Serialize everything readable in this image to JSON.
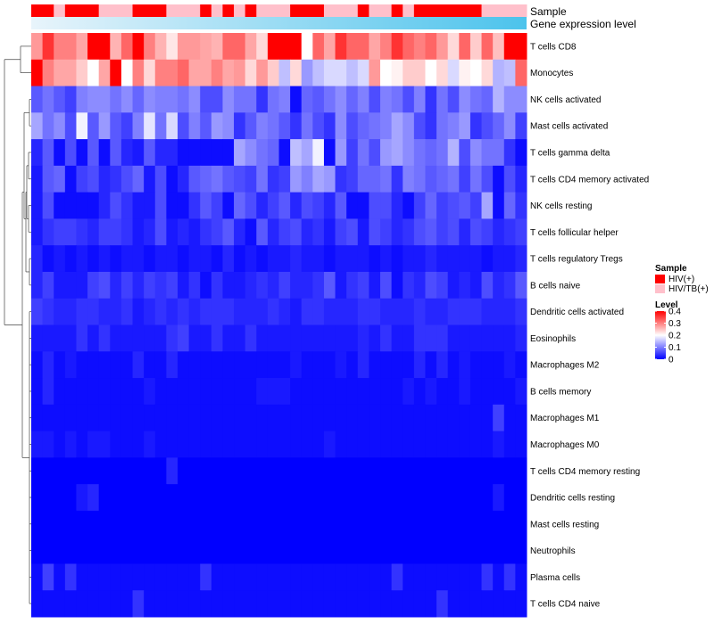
{
  "chart_data": {
    "type": "heatmap",
    "rows": [
      "T cells CD8",
      "Monocytes",
      "NK cells activated",
      "Mast cells activated",
      "T cells gamma delta",
      "T cells CD4 memory activated",
      "NK cells resting",
      "T cells follicular helper",
      "T cells regulatory  Tregs",
      "B cells naive",
      "Dendritic cells activated",
      "Eosinophils",
      "Macrophages M2",
      "B cells memory",
      "Macrophages M1",
      "Macrophages M0",
      "T cells CD4 memory resting",
      "Dendritic cells resting",
      "Mast cells resting",
      "Neutrophils",
      "Plasma cells",
      "T cells CD4 naive"
    ],
    "n_columns": 44,
    "annotation_labels": {
      "sample": "Sample",
      "gene": "Gene expression level"
    },
    "sample_annotation": [
      "HIV(+)",
      "HIV(+)",
      "HIV/TB(+)",
      "HIV(+)",
      "HIV(+)",
      "HIV(+)",
      "HIV/TB(+)",
      "HIV/TB(+)",
      "HIV/TB(+)",
      "HIV(+)",
      "HIV(+)",
      "HIV(+)",
      "HIV/TB(+)",
      "HIV/TB(+)",
      "HIV/TB(+)",
      "HIV(+)",
      "HIV/TB(+)",
      "HIV(+)",
      "HIV/TB(+)",
      "HIV(+)",
      "HIV/TB(+)",
      "HIV/TB(+)",
      "HIV/TB(+)",
      "HIV(+)",
      "HIV(+)",
      "HIV(+)",
      "HIV/TB(+)",
      "HIV/TB(+)",
      "HIV/TB(+)",
      "HIV(+)",
      "HIV/TB(+)",
      "HIV/TB(+)",
      "HIV(+)",
      "HIV/TB(+)",
      "HIV(+)",
      "HIV(+)",
      "HIV(+)",
      "HIV(+)",
      "HIV(+)",
      "HIV(+)",
      "HIV/TB(+)",
      "HIV/TB(+)",
      "HIV/TB(+)",
      "HIV/TB(+)"
    ],
    "values": [
      [
        0.28,
        0.36,
        0.3,
        0.3,
        0.27,
        0.4,
        0.4,
        0.26,
        0.32,
        0.4,
        0.3,
        0.26,
        0.22,
        0.28,
        0.28,
        0.27,
        0.26,
        0.32,
        0.32,
        0.27,
        0.23,
        0.4,
        0.42,
        0.42,
        0.2,
        0.32,
        0.27,
        0.36,
        0.32,
        0.32,
        0.27,
        0.3,
        0.36,
        0.32,
        0.3,
        0.32,
        0.28,
        0.23,
        0.32,
        0.24,
        0.32,
        0.25,
        0.4,
        0.4
      ],
      [
        0.42,
        0.3,
        0.27,
        0.27,
        0.24,
        0.2,
        0.27,
        0.4,
        0.2,
        0.3,
        0.23,
        0.3,
        0.3,
        0.32,
        0.27,
        0.27,
        0.3,
        0.27,
        0.28,
        0.23,
        0.28,
        0.24,
        0.15,
        0.23,
        0.12,
        0.15,
        0.17,
        0.17,
        0.15,
        0.17,
        0.28,
        0.2,
        0.21,
        0.24,
        0.24,
        0.2,
        0.23,
        0.17,
        0.21,
        0.2,
        0.23,
        0.14,
        0.15,
        0.32
      ],
      [
        0.07,
        0.09,
        0.07,
        0.05,
        0.1,
        0.11,
        0.11,
        0.09,
        0.11,
        0.08,
        0.11,
        0.1,
        0.1,
        0.09,
        0.11,
        0.06,
        0.06,
        0.11,
        0.09,
        0.09,
        0.04,
        0.09,
        0.1,
        0.01,
        0.08,
        0.07,
        0.09,
        0.11,
        0.08,
        0.1,
        0.06,
        0.1,
        0.09,
        0.06,
        0.1,
        0.04,
        0.09,
        0.06,
        0.11,
        0.09,
        0.08,
        0.14,
        0.11,
        0.11
      ],
      [
        0.13,
        0.09,
        0.11,
        0.06,
        0.19,
        0.07,
        0.12,
        0.07,
        0.05,
        0.1,
        0.18,
        0.09,
        0.17,
        0.06,
        0.1,
        0.07,
        0.12,
        0.11,
        0.04,
        0.07,
        0.1,
        0.09,
        0.07,
        0.04,
        0.09,
        0.06,
        0.04,
        0.11,
        0.06,
        0.08,
        0.09,
        0.1,
        0.13,
        0.11,
        0.06,
        0.04,
        0.09,
        0.1,
        0.12,
        0.04,
        0.06,
        0.08,
        0.11,
        0.05
      ],
      [
        0.03,
        0.07,
        0.01,
        0.06,
        0.01,
        0.07,
        0.01,
        0.07,
        0.03,
        0.02,
        0.07,
        0.03,
        0.03,
        0.01,
        0.01,
        0.01,
        0.01,
        0.01,
        0.13,
        0.11,
        0.09,
        0.08,
        0.01,
        0.15,
        0.13,
        0.19,
        0.01,
        0.12,
        0.05,
        0.09,
        0.06,
        0.12,
        0.13,
        0.11,
        0.09,
        0.08,
        0.09,
        0.14,
        0.06,
        0.11,
        0.09,
        0.09,
        0.04,
        0.01
      ],
      [
        0.02,
        0.07,
        0.08,
        0.01,
        0.05,
        0.06,
        0.03,
        0.04,
        0.06,
        0.08,
        0.02,
        0.06,
        0.01,
        0.03,
        0.07,
        0.08,
        0.09,
        0.07,
        0.06,
        0.05,
        0.09,
        0.04,
        0.05,
        0.12,
        0.1,
        0.13,
        0.12,
        0.04,
        0.05,
        0.08,
        0.08,
        0.09,
        0.04,
        0.1,
        0.09,
        0.07,
        0.08,
        0.09,
        0.05,
        0.09,
        0.06,
        0.01,
        0.06,
        0.03
      ],
      [
        0.02,
        0.06,
        0.01,
        0.01,
        0.01,
        0.01,
        0.03,
        0.06,
        0.04,
        0.02,
        0.02,
        0.06,
        0.01,
        0.01,
        0.04,
        0.07,
        0.05,
        0.01,
        0.08,
        0.06,
        0.03,
        0.05,
        0.07,
        0.03,
        0.06,
        0.05,
        0.03,
        0.07,
        0.01,
        0.01,
        0.06,
        0.06,
        0.03,
        0.01,
        0.05,
        0.08,
        0.05,
        0.06,
        0.07,
        0.05,
        0.13,
        0.01,
        0.08,
        0.04
      ],
      [
        0.02,
        0.04,
        0.05,
        0.05,
        0.04,
        0.03,
        0.05,
        0.05,
        0.04,
        0.02,
        0.03,
        0.06,
        0.02,
        0.03,
        0.02,
        0.04,
        0.05,
        0.07,
        0.03,
        0.01,
        0.07,
        0.03,
        0.05,
        0.06,
        0.03,
        0.04,
        0.02,
        0.05,
        0.06,
        0.02,
        0.06,
        0.05,
        0.03,
        0.04,
        0.06,
        0.07,
        0.05,
        0.06,
        0.03,
        0.06,
        0.05,
        0.03,
        0.04,
        0.05
      ],
      [
        0.03,
        0.01,
        0.02,
        0.01,
        0.02,
        0.01,
        0.02,
        0.01,
        0.02,
        0.02,
        0.01,
        0.02,
        0.02,
        0.01,
        0.02,
        0.02,
        0.01,
        0.03,
        0.01,
        0.02,
        0.01,
        0.02,
        0.02,
        0.03,
        0.02,
        0.02,
        0.01,
        0.02,
        0.02,
        0.02,
        0.01,
        0.02,
        0.01,
        0.02,
        0.02,
        0.03,
        0.02,
        0.02,
        0.02,
        0.02,
        0.01,
        0.02,
        0.02,
        0.03
      ],
      [
        0.03,
        0.05,
        0.02,
        0.02,
        0.02,
        0.05,
        0.06,
        0.03,
        0.05,
        0.03,
        0.05,
        0.04,
        0.05,
        0.02,
        0.04,
        0.01,
        0.04,
        0.02,
        0.02,
        0.03,
        0.04,
        0.03,
        0.05,
        0.03,
        0.03,
        0.04,
        0.07,
        0.02,
        0.04,
        0.05,
        0.02,
        0.06,
        0.01,
        0.04,
        0.03,
        0.06,
        0.05,
        0.02,
        0.03,
        0.02,
        0.06,
        0.03,
        0.04,
        0.07
      ],
      [
        0.05,
        0.04,
        0.03,
        0.03,
        0.04,
        0.04,
        0.03,
        0.03,
        0.04,
        0.02,
        0.03,
        0.04,
        0.03,
        0.04,
        0.03,
        0.04,
        0.04,
        0.04,
        0.03,
        0.03,
        0.03,
        0.04,
        0.03,
        0.02,
        0.04,
        0.04,
        0.03,
        0.03,
        0.03,
        0.04,
        0.04,
        0.03,
        0.03,
        0.03,
        0.04,
        0.03,
        0.03,
        0.04,
        0.04,
        0.04,
        0.03,
        0.03,
        0.03,
        0.04
      ],
      [
        0.02,
        0.02,
        0.02,
        0.02,
        0.04,
        0.02,
        0.04,
        0.02,
        0.02,
        0.02,
        0.02,
        0.02,
        0.04,
        0.05,
        0.02,
        0.02,
        0.04,
        0.02,
        0.02,
        0.04,
        0.02,
        0.02,
        0.02,
        0.02,
        0.02,
        0.02,
        0.02,
        0.02,
        0.02,
        0.03,
        0.02,
        0.04,
        0.02,
        0.02,
        0.04,
        0.04,
        0.04,
        0.02,
        0.02,
        0.02,
        0.02,
        0.02,
        0.02,
        0.03
      ],
      [
        0.01,
        0.03,
        0.01,
        0.02,
        0.01,
        0.01,
        0.01,
        0.01,
        0.01,
        0.03,
        0.01,
        0.01,
        0.03,
        0.01,
        0.01,
        0.01,
        0.01,
        0.01,
        0.01,
        0.01,
        0.01,
        0.01,
        0.01,
        0.02,
        0.01,
        0.01,
        0.01,
        0.02,
        0.01,
        0.03,
        0.01,
        0.01,
        0.01,
        0.01,
        0.03,
        0.01,
        0.03,
        0.01,
        0.02,
        0.01,
        0.01,
        0.01,
        0.02,
        0.01
      ],
      [
        0.01,
        0.03,
        0.01,
        0.01,
        0.01,
        0.01,
        0.01,
        0.01,
        0.01,
        0.01,
        0.02,
        0.01,
        0.01,
        0.01,
        0.01,
        0.01,
        0.01,
        0.01,
        0.01,
        0.01,
        0.02,
        0.02,
        0.02,
        0.01,
        0.01,
        0.01,
        0.01,
        0.01,
        0.01,
        0.01,
        0.01,
        0.01,
        0.01,
        0.02,
        0.01,
        0.02,
        0.01,
        0.01,
        0.02,
        0.01,
        0.01,
        0.01,
        0.01,
        0.02
      ],
      [
        0.01,
        0.01,
        0.01,
        0.01,
        0.01,
        0.01,
        0.01,
        0.01,
        0.01,
        0.01,
        0.01,
        0.01,
        0.01,
        0.01,
        0.01,
        0.01,
        0.01,
        0.01,
        0.01,
        0.01,
        0.01,
        0.01,
        0.01,
        0.01,
        0.01,
        0.01,
        0.01,
        0.01,
        0.01,
        0.01,
        0.01,
        0.01,
        0.01,
        0.01,
        0.01,
        0.01,
        0.01,
        0.01,
        0.01,
        0.01,
        0.01,
        0.05,
        0.01,
        0.01
      ],
      [
        0.02,
        0.02,
        0.01,
        0.02,
        0.01,
        0.02,
        0.02,
        0.01,
        0.01,
        0.01,
        0.02,
        0.01,
        0.01,
        0.01,
        0.01,
        0.01,
        0.01,
        0.01,
        0.01,
        0.01,
        0.01,
        0.01,
        0.01,
        0.01,
        0.01,
        0.01,
        0.02,
        0.01,
        0.01,
        0.01,
        0.01,
        0.01,
        0.01,
        0.01,
        0.01,
        0.01,
        0.01,
        0.01,
        0.01,
        0.01,
        0.01,
        0.02,
        0.01,
        0.01
      ],
      [
        0.0,
        0.0,
        0.0,
        0.0,
        0.0,
        0.0,
        0.0,
        0.0,
        0.0,
        0.0,
        0.0,
        0.0,
        0.03,
        0.0,
        0.0,
        0.0,
        0.0,
        0.0,
        0.0,
        0.0,
        0.0,
        0.0,
        0.0,
        0.0,
        0.0,
        0.0,
        0.0,
        0.0,
        0.0,
        0.0,
        0.0,
        0.0,
        0.0,
        0.0,
        0.0,
        0.0,
        0.0,
        0.0,
        0.0,
        0.0,
        0.0,
        0.0,
        0.0,
        0.0
      ],
      [
        0.0,
        0.0,
        0.0,
        0.0,
        0.02,
        0.03,
        0.0,
        0.0,
        0.0,
        0.0,
        0.0,
        0.0,
        0.0,
        0.0,
        0.0,
        0.0,
        0.0,
        0.0,
        0.0,
        0.0,
        0.0,
        0.0,
        0.0,
        0.0,
        0.0,
        0.0,
        0.0,
        0.0,
        0.0,
        0.0,
        0.0,
        0.0,
        0.0,
        0.0,
        0.0,
        0.0,
        0.0,
        0.0,
        0.0,
        0.0,
        0.0,
        0.02,
        0.0,
        0.0
      ],
      [
        0.0,
        0.0,
        0.0,
        0.0,
        0.0,
        0.0,
        0.0,
        0.0,
        0.0,
        0.0,
        0.0,
        0.0,
        0.0,
        0.0,
        0.0,
        0.0,
        0.0,
        0.0,
        0.0,
        0.0,
        0.0,
        0.0,
        0.0,
        0.0,
        0.0,
        0.0,
        0.0,
        0.0,
        0.0,
        0.0,
        0.0,
        0.0,
        0.0,
        0.0,
        0.0,
        0.0,
        0.0,
        0.0,
        0.0,
        0.0,
        0.0,
        0.0,
        0.0,
        0.0
      ],
      [
        0.0,
        0.0,
        0.0,
        0.0,
        0.0,
        0.0,
        0.0,
        0.0,
        0.0,
        0.0,
        0.0,
        0.0,
        0.0,
        0.0,
        0.0,
        0.0,
        0.0,
        0.0,
        0.0,
        0.0,
        0.0,
        0.0,
        0.0,
        0.0,
        0.0,
        0.0,
        0.0,
        0.0,
        0.0,
        0.0,
        0.0,
        0.0,
        0.0,
        0.0,
        0.0,
        0.0,
        0.0,
        0.0,
        0.0,
        0.0,
        0.0,
        0.0,
        0.0,
        0.0
      ],
      [
        0.01,
        0.05,
        0.01,
        0.04,
        0.01,
        0.01,
        0.01,
        0.01,
        0.01,
        0.01,
        0.01,
        0.01,
        0.01,
        0.01,
        0.01,
        0.04,
        0.01,
        0.01,
        0.01,
        0.01,
        0.01,
        0.01,
        0.01,
        0.01,
        0.01,
        0.01,
        0.01,
        0.01,
        0.01,
        0.01,
        0.01,
        0.01,
        0.04,
        0.01,
        0.01,
        0.01,
        0.01,
        0.01,
        0.01,
        0.01,
        0.04,
        0.01,
        0.04,
        0.01
      ],
      [
        0.01,
        0.01,
        0.01,
        0.01,
        0.01,
        0.01,
        0.01,
        0.01,
        0.01,
        0.04,
        0.01,
        0.01,
        0.01,
        0.01,
        0.01,
        0.01,
        0.01,
        0.01,
        0.01,
        0.01,
        0.01,
        0.01,
        0.01,
        0.01,
        0.01,
        0.01,
        0.01,
        0.01,
        0.01,
        0.01,
        0.01,
        0.01,
        0.01,
        0.01,
        0.01,
        0.01,
        0.04,
        0.01,
        0.01,
        0.01,
        0.01,
        0.01,
        0.01,
        0.01
      ]
    ],
    "color_range": [
      0,
      0.4
    ],
    "legend": {
      "sample_title": "Sample",
      "sample_items": [
        {
          "label": "HIV(+)",
          "color": "#ff0000"
        },
        {
          "label": "HIV/TB(+)",
          "color": "#ffc0cb"
        }
      ],
      "level_title": "Level",
      "level_ticks": [
        "0.4",
        "0.3",
        "0.2",
        "0.1",
        "0"
      ],
      "level_tick_values": [
        0.4,
        0.3,
        0.2,
        0.1,
        0
      ]
    },
    "colors": {
      "low": "#0000ff",
      "mid": "#ffffff",
      "high": "#ff0000"
    }
  }
}
